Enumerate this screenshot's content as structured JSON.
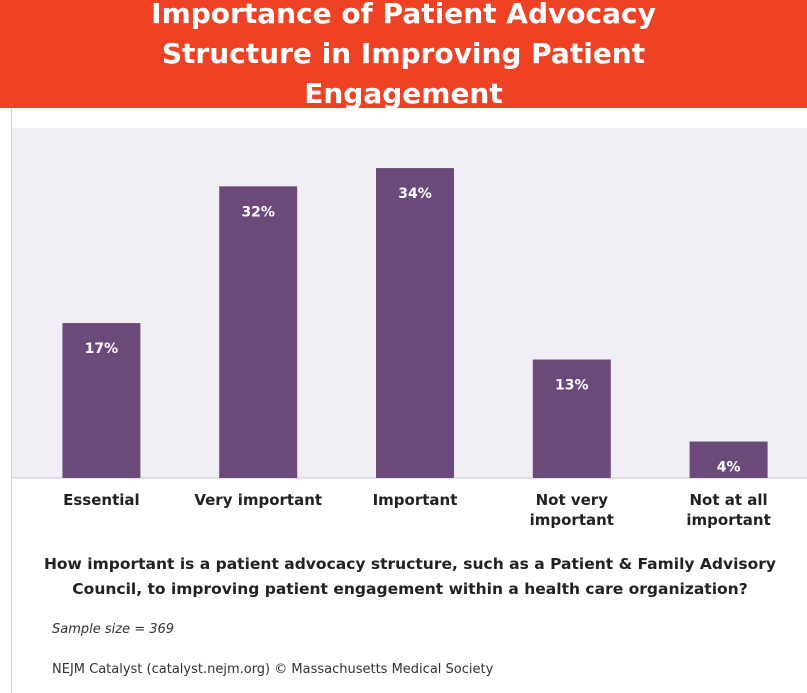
{
  "chart_data": {
    "type": "bar",
    "title": "Importance of Patient Advocacy Structure in Improving Patient Engagement",
    "categories": [
      "Essential",
      "Very important",
      "Important",
      "Not very important",
      "Not at all important"
    ],
    "values": [
      17,
      32,
      34,
      13,
      4
    ],
    "value_labels": [
      "17%",
      "32%",
      "34%",
      "13%",
      "4%"
    ],
    "color": "#6b4a7a",
    "ylim": [
      0,
      38.4
    ],
    "x_label": "How important is a patient advocacy structure, such as a Patient & Family Advisory Council, to improving patient engagement within a health care organization?",
    "note": "Sample size = 369",
    "source": "NEJM Catalyst (catalyst.nejm.org) © Massachusetts Medical Society"
  }
}
